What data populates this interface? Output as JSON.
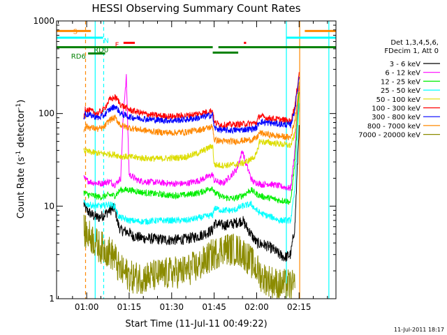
{
  "chart_data": {
    "type": "line",
    "title": "HESSI Observing Summary Count Rates",
    "xlabel": "Start Time (11-Jul-11 00:49:22)",
    "ylabel": "Count Rate (s⁻¹ detector⁻¹)",
    "ylabel_prefix": "Count Rate (s",
    "ylabel_exp": "-1",
    "ylabel_mid": " detector",
    "ylabel_exp2": "-1",
    "ylabel_suffix": ")",
    "footer": "11-Jul-2011 18:17",
    "y_scale": "log",
    "ylim": [
      1,
      1000
    ],
    "xlim_minutes": [
      49.37,
      148.0
    ],
    "x_ticks": [
      {
        "m": 60,
        "label": "01:00"
      },
      {
        "m": 75,
        "label": "01:15"
      },
      {
        "m": 90,
        "label": "01:30"
      },
      {
        "m": 105,
        "label": "01:45"
      },
      {
        "m": 120,
        "label": "02:00"
      },
      {
        "m": 135,
        "label": "02:15"
      }
    ],
    "y_ticks": [
      {
        "v": 1,
        "label": "1"
      },
      {
        "v": 10,
        "label": "10"
      },
      {
        "v": 100,
        "label": "100"
      },
      {
        "v": 1000,
        "label": "1000"
      }
    ],
    "legend_title": [
      "Det 1,3,4,5,6,",
      "FDecim 1, Att 0"
    ],
    "legend_position": "right",
    "series": [
      {
        "name": "3 - 6 keV",
        "color": "#000000",
        "x": [
          59,
          60,
          62,
          64,
          66,
          68,
          70,
          71,
          72,
          75,
          76,
          80,
          85,
          90,
          95,
          100,
          104.5,
          105,
          108,
          112,
          115,
          118,
          120,
          123,
          126,
          128,
          130,
          132,
          133.5,
          135
        ],
        "y": [
          10.5,
          9,
          8,
          7.5,
          8,
          9,
          9.5,
          6.5,
          5.5,
          5.2,
          4.8,
          4.5,
          4.4,
          4.3,
          4.4,
          4.8,
          5.5,
          6.5,
          6.2,
          6.5,
          7,
          5,
          4,
          3.8,
          3.4,
          3,
          2.8,
          3,
          6,
          75
        ]
      },
      {
        "name": "6 - 12 keV",
        "color": "#ff00ff",
        "x": [
          59,
          60,
          62,
          65,
          68,
          70,
          72,
          73,
          74,
          75,
          78,
          80,
          85,
          90,
          95,
          100,
          104.5,
          105,
          108,
          110,
          113,
          115,
          116,
          117,
          118,
          119,
          120,
          121,
          122,
          124,
          126,
          128,
          130,
          132,
          133.5,
          135
        ],
        "y": [
          20,
          19,
          18,
          17.5,
          18.5,
          17,
          20,
          110,
          250,
          22,
          19,
          18.5,
          18,
          17.5,
          17.5,
          19,
          22,
          19,
          17.5,
          20,
          25,
          40,
          30,
          25,
          20,
          18,
          18,
          17.5,
          17,
          17.5,
          17,
          16.5,
          16,
          15.5,
          40,
          200
        ]
      },
      {
        "name": "12 - 25 keV",
        "color": "#00ee00",
        "x": [
          59,
          60,
          62,
          65,
          68,
          70,
          72,
          75,
          80,
          85,
          90,
          95,
          100,
          104.5,
          105,
          108,
          112,
          115,
          118,
          120,
          121,
          123,
          126,
          128,
          130,
          132,
          133.5,
          135
        ],
        "y": [
          14,
          13.5,
          13,
          12.5,
          13.2,
          13,
          15,
          15,
          14,
          13.5,
          13,
          13.2,
          14,
          16,
          14,
          12.5,
          12,
          13,
          15,
          13.5,
          13,
          12.5,
          12,
          11.5,
          11.5,
          11,
          30,
          170
        ]
      },
      {
        "name": "25 - 50 keV",
        "color": "#00ffff",
        "x": [
          59,
          60,
          62,
          65,
          68,
          70,
          71,
          72,
          75,
          80,
          85,
          90,
          95,
          100,
          104.5,
          105,
          108,
          112,
          115,
          118,
          120,
          121,
          123,
          126,
          128,
          130,
          132,
          133.5,
          135
        ],
        "y": [
          11,
          10.5,
          10.2,
          10,
          10.5,
          10,
          8,
          7.5,
          7,
          6.8,
          7,
          7,
          7,
          7.5,
          8,
          9.5,
          9,
          9,
          10,
          10.5,
          9,
          8.5,
          8,
          7.5,
          7,
          7,
          7,
          15,
          130
        ]
      },
      {
        "name": "50 - 100 keV",
        "color": "#dddd00",
        "x": [
          59,
          60,
          62,
          65,
          68,
          70,
          72,
          75,
          80,
          85,
          90,
          95,
          100,
          104.5,
          105,
          108,
          112,
          115,
          118,
          120,
          121,
          123,
          126,
          128,
          130,
          132,
          133.5,
          135
        ],
        "y": [
          40,
          39,
          38,
          37,
          36.5,
          36,
          34.5,
          34,
          33,
          32.5,
          33,
          34,
          38,
          45,
          28,
          27.5,
          28,
          29,
          32,
          36,
          50,
          49,
          48,
          47,
          46,
          45,
          60,
          220
        ]
      },
      {
        "name": "100 - 300 keV",
        "color": "#ff0000",
        "x": [
          59,
          59.5,
          60,
          62,
          64,
          66,
          68,
          70,
          71,
          72,
          75,
          80,
          85,
          90,
          95,
          100,
          104.5,
          105,
          108,
          112,
          115,
          118,
          120,
          121,
          123,
          126,
          128,
          130,
          132,
          133.5,
          135
        ],
        "y": [
          90,
          115,
          110,
          105,
          100,
          110,
          140,
          150,
          140,
          125,
          110,
          100,
          95,
          93,
          95,
          100,
          108,
          80,
          75,
          76,
          77,
          78,
          80,
          95,
          90,
          88,
          86,
          85,
          82,
          120,
          280
        ]
      },
      {
        "name": "300 - 800 keV",
        "color": "#0000ff",
        "x": [
          59,
          59.5,
          60,
          62,
          64,
          66,
          68,
          70,
          71,
          72,
          75,
          80,
          85,
          90,
          95,
          100,
          104.5,
          105,
          108,
          112,
          115,
          118,
          120,
          121,
          123,
          126,
          128,
          130,
          132,
          133.5,
          135
        ],
        "y": [
          85,
          100,
          98,
          95,
          90,
          95,
          110,
          120,
          110,
          100,
          92,
          88,
          85,
          84,
          86,
          90,
          97,
          70,
          66,
          66,
          67,
          68,
          70,
          82,
          80,
          78,
          77,
          76,
          75,
          110,
          250
        ]
      },
      {
        "name": "800 - 7000 keV",
        "color": "#ff8800",
        "x": [
          59,
          59.5,
          60,
          62,
          64,
          66,
          68,
          70,
          71,
          72,
          75,
          80,
          85,
          90,
          95,
          100,
          104.5,
          105,
          108,
          112,
          115,
          118,
          120,
          121,
          123,
          126,
          128,
          130,
          132,
          133.5,
          135
        ],
        "y": [
          65,
          75,
          72,
          70,
          68,
          70,
          85,
          90,
          82,
          75,
          70,
          66,
          63,
          62,
          63,
          67,
          72,
          52,
          50,
          50,
          51,
          52,
          54,
          62,
          60,
          58,
          57,
          56,
          55,
          85,
          200
        ]
      },
      {
        "name": "7000 - 20000 keV",
        "color": "#8b8b00",
        "x": [
          59,
          60,
          62,
          64,
          66,
          68,
          70,
          71,
          72,
          75,
          76,
          80,
          85,
          90,
          95,
          100,
          104.5,
          105,
          108,
          112,
          115,
          118,
          120,
          122,
          124,
          126,
          128,
          130,
          132,
          133.5
        ],
        "y": [
          5.5,
          5,
          4.5,
          3.7,
          3.5,
          3.2,
          2.8,
          2.2,
          2,
          1.8,
          1.7,
          1.7,
          1.8,
          1.9,
          2,
          2.3,
          3,
          3,
          3.5,
          3.4,
          3.2,
          2.5,
          2.1,
          1.7,
          1.6,
          1.5,
          1.4,
          1.4,
          1.4,
          1.3
        ]
      }
    ],
    "annotations": {
      "labels": [
        {
          "text": "S",
          "m": 55.2,
          "color": "#ff8800"
        },
        {
          "text": "N",
          "m": 66.0,
          "color": "#00ffff"
        },
        {
          "text": "F",
          "m": 70.0,
          "color": "#ff0000"
        },
        {
          "text": "RD0",
          "m": 62.5,
          "color": "#008000"
        },
        {
          "text": "RD6",
          "m": 54.5,
          "color": "#008000"
        }
      ],
      "status_bars": [
        {
          "color": "#ff8800",
          "level": 780,
          "segments": [
            [
              49.37,
              61.5
            ],
            [
              137.0,
              148.0
            ]
          ]
        },
        {
          "color": "#00ffff",
          "level": 660,
          "segments": [
            [
              49.37,
              65.8
            ],
            [
              130.5,
              148.0
            ]
          ]
        },
        {
          "color": "#ff0000",
          "level": 580,
          "segments": [
            [
              73.0,
              77.0
            ],
            [
              115.5,
              116.3
            ]
          ]
        },
        {
          "color": "#008000",
          "level": 520,
          "segments": [
            [
              49.37,
              104.5
            ],
            [
              106.5,
              148.0
            ]
          ]
        },
        {
          "color": "#008000",
          "level": 455,
          "segments": [
            [
              104.5,
              113.5
            ]
          ]
        },
        {
          "color": "#008000",
          "level": 445,
          "segments": [
            [
              60.5,
              66.5
            ]
          ]
        }
      ],
      "vlines": [
        {
          "m": 59.6,
          "color": "#ff8800",
          "dash": true
        },
        {
          "m": 63.0,
          "color": "#00ffff",
          "dash": false
        },
        {
          "m": 66.0,
          "color": "#00ffff",
          "dash": true
        },
        {
          "m": 130.5,
          "color": "#00ffff",
          "dash": false
        },
        {
          "m": 135.2,
          "color": "#ff8800",
          "dash": false
        },
        {
          "m": 145.5,
          "color": "#00ffff",
          "dash": false
        }
      ]
    }
  }
}
